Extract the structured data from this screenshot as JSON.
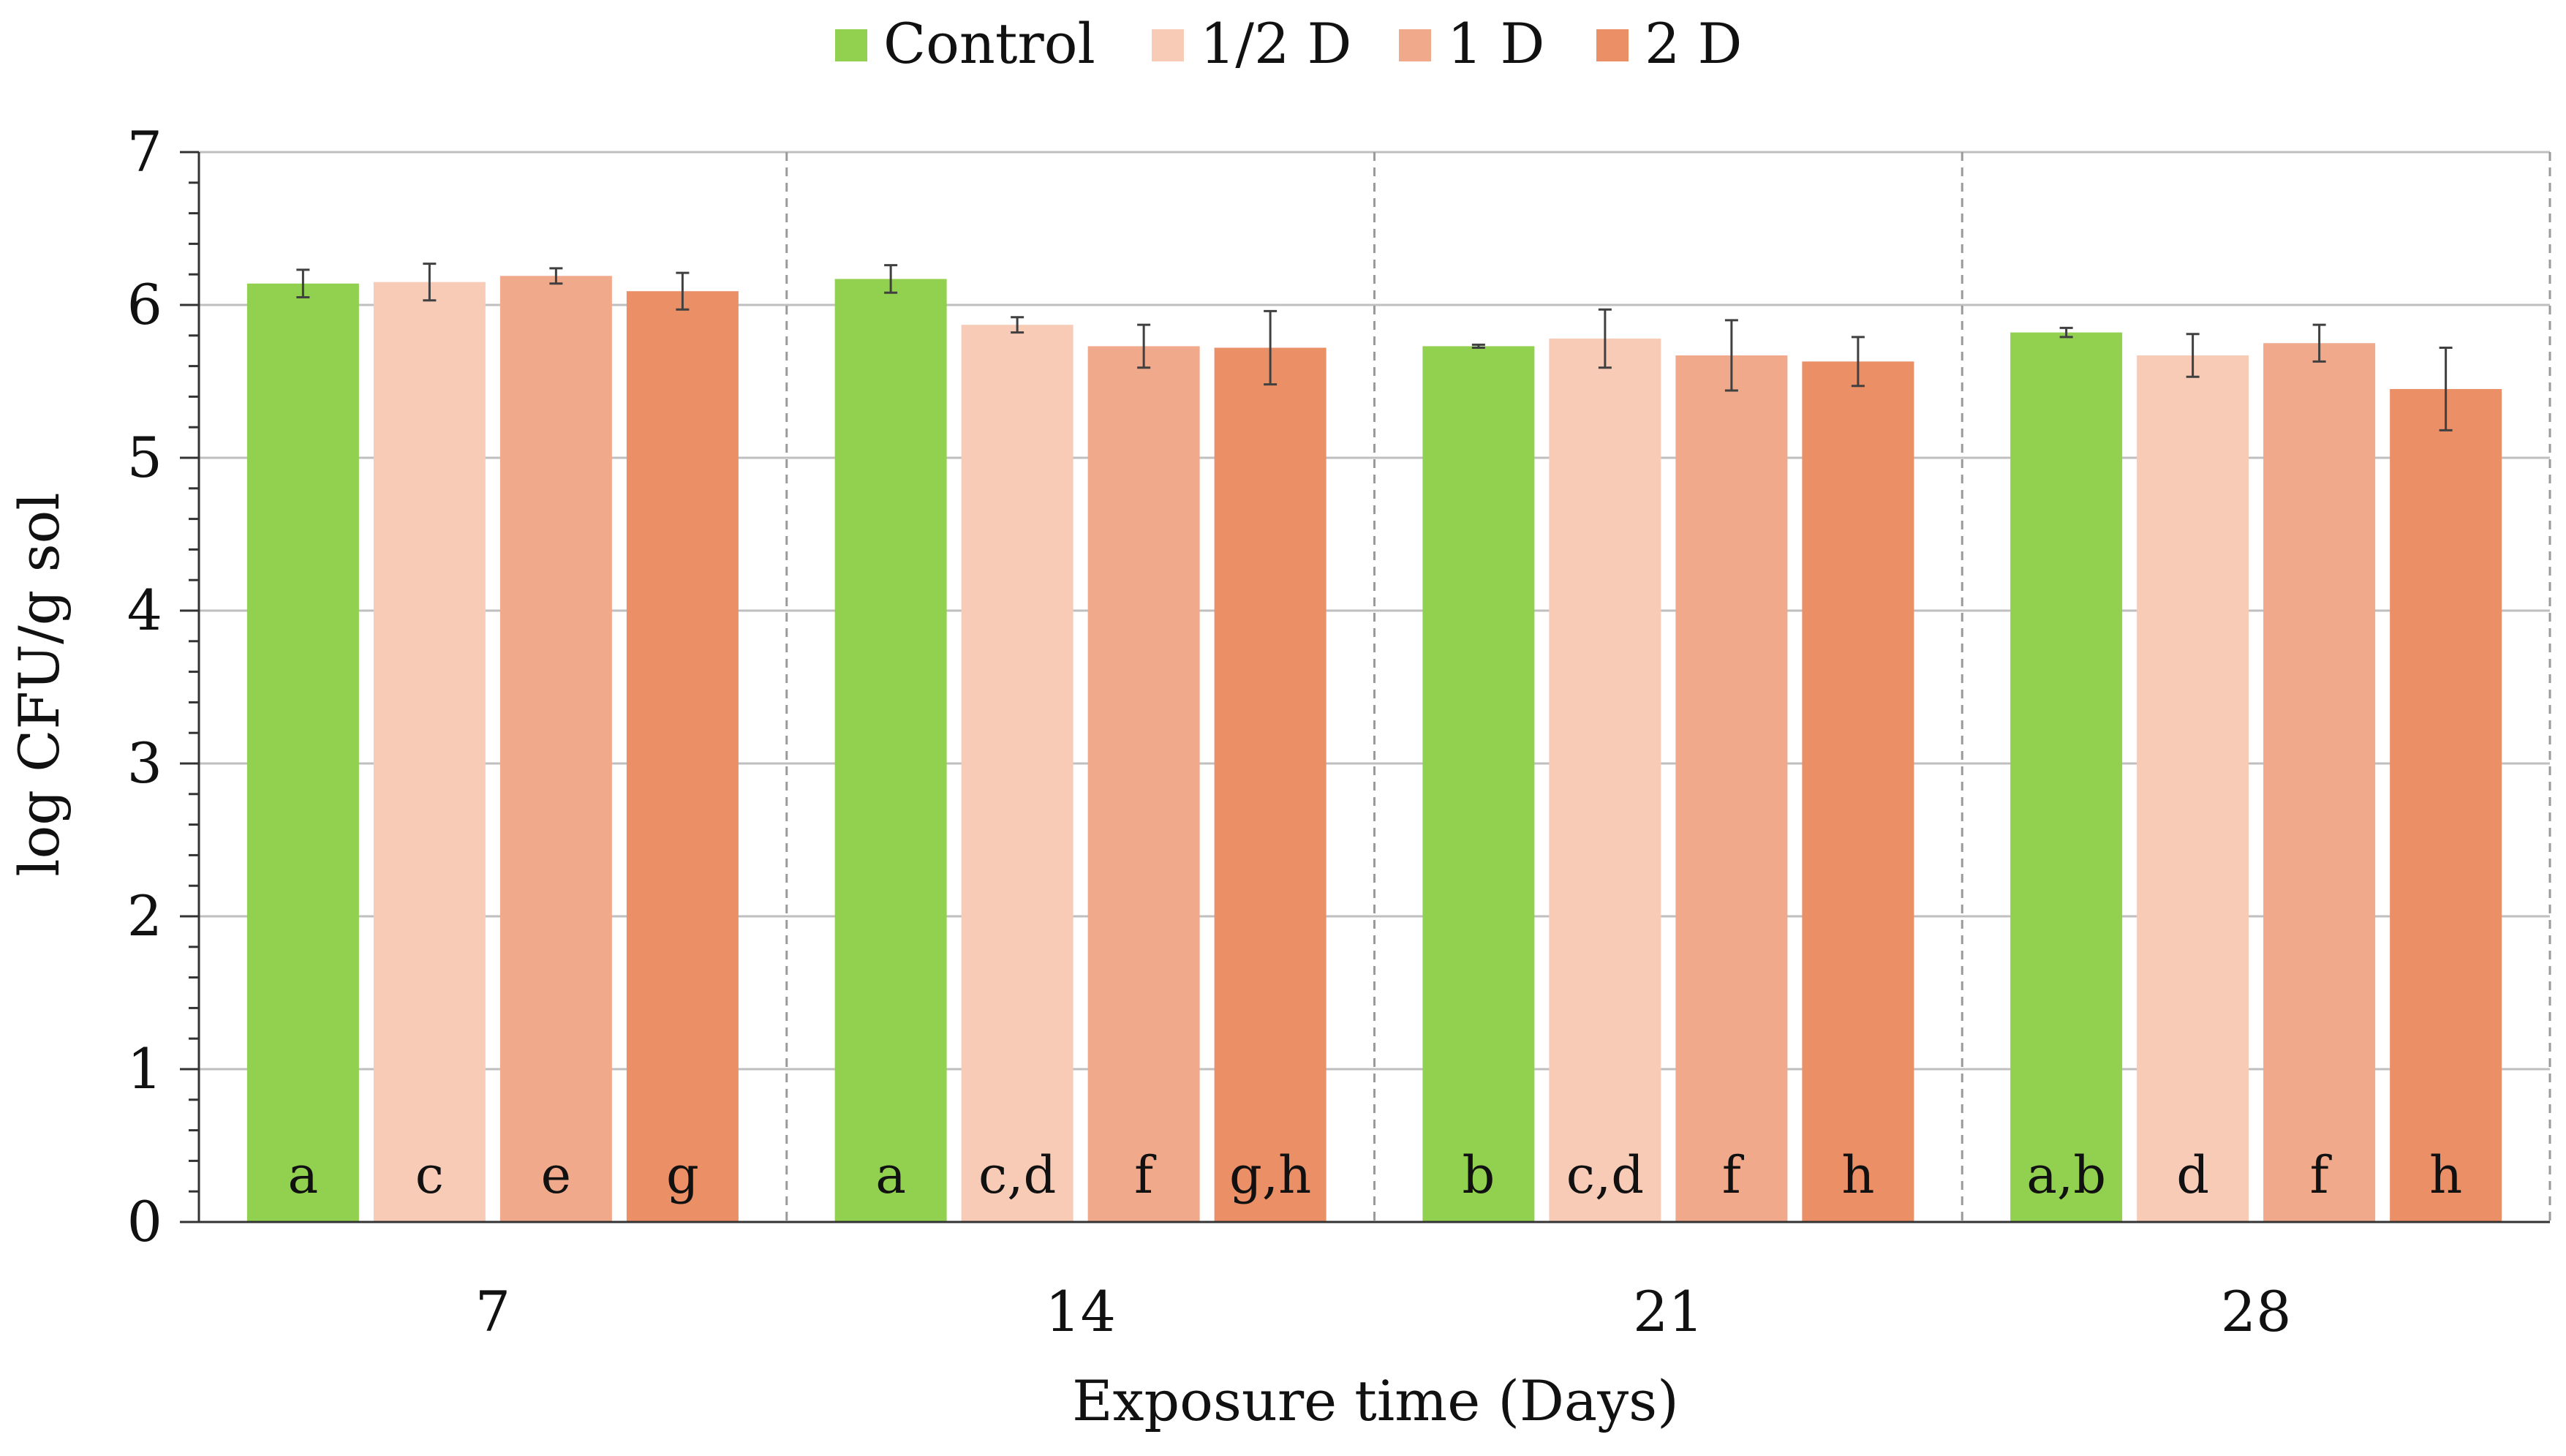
{
  "chart_data": {
    "type": "bar",
    "title": "",
    "xlabel": "Exposure time (Days)",
    "ylabel": "log CFU/g sol",
    "ylim": [
      0,
      7
    ],
    "yticks": [
      "0",
      "1",
      "2",
      "3",
      "4",
      "5",
      "6",
      "7"
    ],
    "categories": [
      "7",
      "14",
      "21",
      "28"
    ],
    "grid": "horizontal major gridlines; dashed vertical separators between groups",
    "legend_position": "top-center",
    "series": [
      {
        "name": "Control",
        "color": "#92d050",
        "values": [
          6.14,
          6.17,
          5.73,
          5.82
        ],
        "errors": [
          0.09,
          0.09,
          0.01,
          0.03
        ],
        "labels": [
          "a",
          "a",
          "b",
          "a,b"
        ]
      },
      {
        "name": "1/2 D",
        "color": "#f8cbb7",
        "values": [
          6.15,
          5.87,
          5.78,
          5.67
        ],
        "errors": [
          0.12,
          0.05,
          0.19,
          0.14
        ],
        "labels": [
          "c",
          "c,d",
          "c,d",
          "d"
        ]
      },
      {
        "name": "1 D",
        "color": "#f0a98a",
        "values": [
          6.19,
          5.73,
          5.67,
          5.75
        ],
        "errors": [
          0.05,
          0.14,
          0.23,
          0.12
        ],
        "labels": [
          "e",
          "f",
          "f",
          "f"
        ]
      },
      {
        "name": "2 D",
        "color": "#eb8f67",
        "values": [
          6.09,
          5.72,
          5.63,
          5.45
        ],
        "errors": [
          0.12,
          0.24,
          0.16,
          0.27
        ],
        "labels": [
          "g",
          "g,h",
          "h",
          "h"
        ]
      }
    ]
  }
}
